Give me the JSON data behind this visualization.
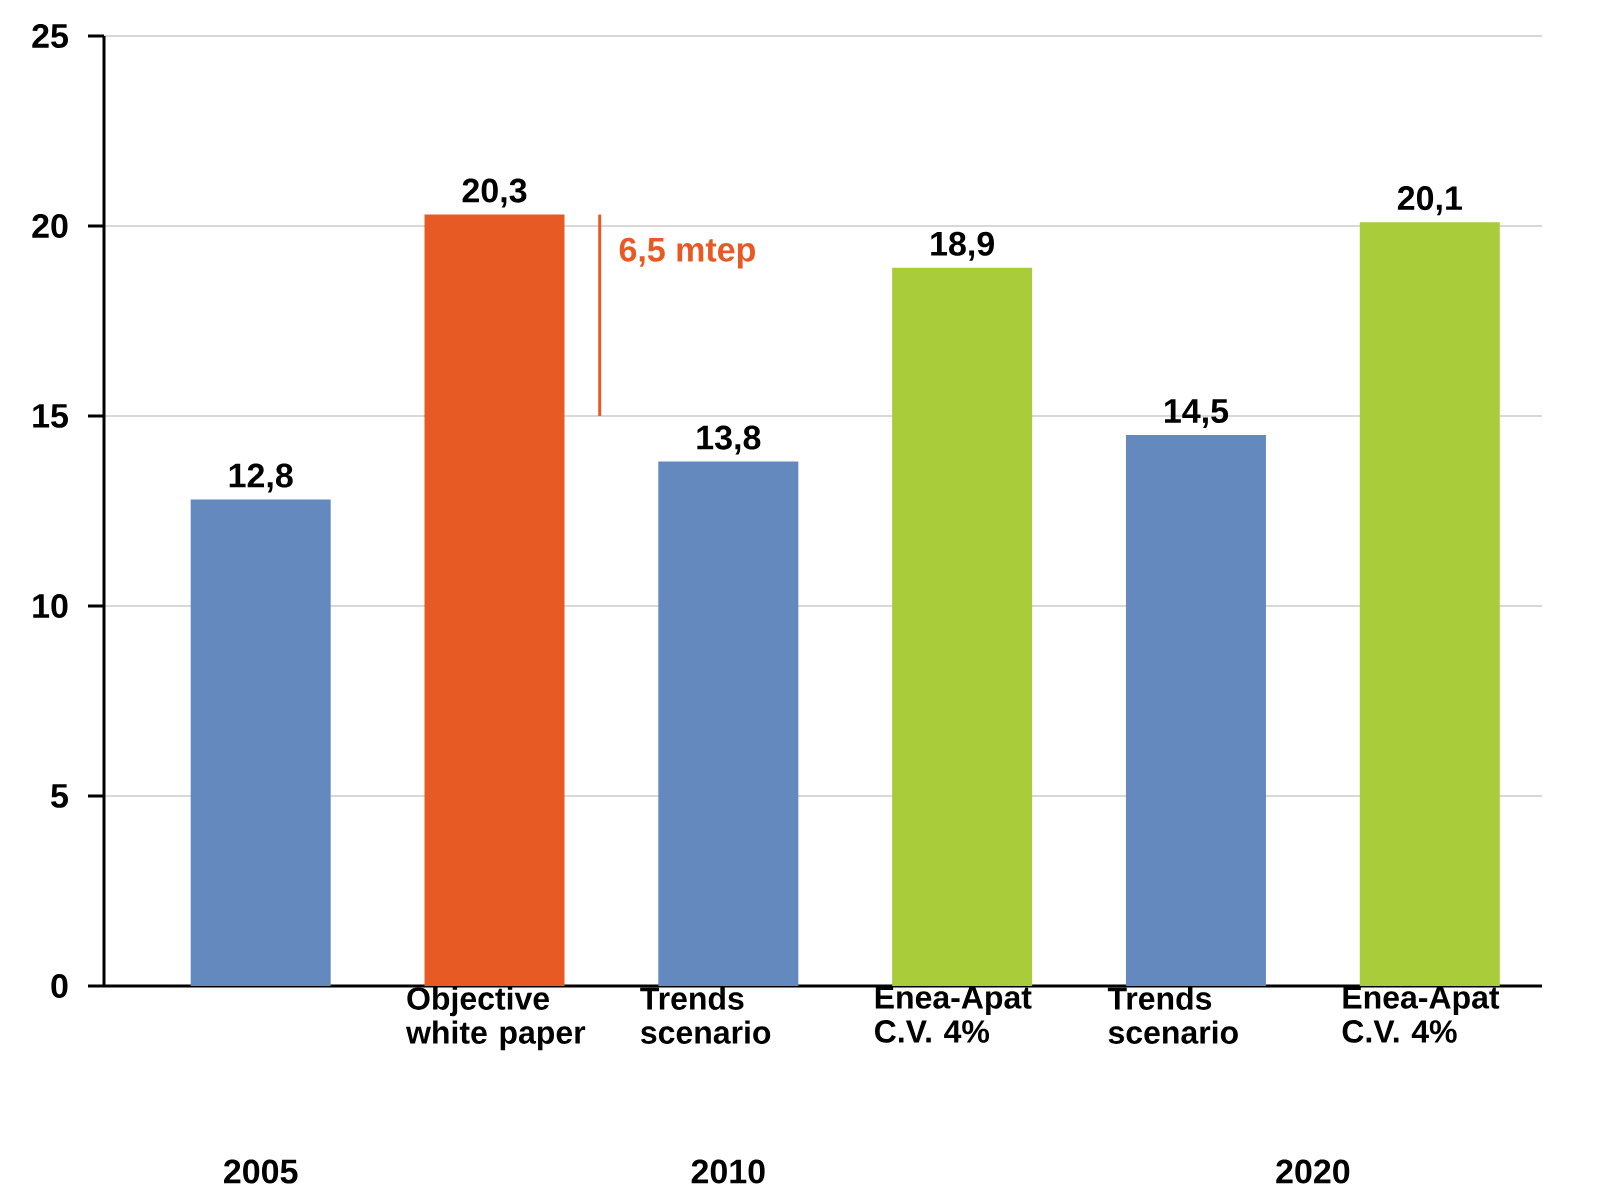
{
  "chart_data": {
    "type": "bar",
    "categories": [
      null,
      "Objective white paper",
      "Trends scenario",
      "Enea-Apat C.V. 4%",
      "Trends scenario",
      "Enea-Apat C.V. 4%"
    ],
    "values": [
      12.8,
      20.3,
      13.8,
      18.9,
      14.5,
      20.1
    ],
    "colors": [
      "#6489bf",
      "#e85a24",
      "#6489bf",
      "#a8cc3a",
      "#6489bf",
      "#a8cc3a"
    ],
    "ylim": [
      0,
      25
    ],
    "yticks": [
      0,
      5,
      10,
      15,
      20,
      25
    ],
    "grid": "y",
    "data_labels": true,
    "value_labels": [
      "12,8",
      "20,3",
      "13,8",
      "18,9",
      "14,5",
      "20,1"
    ],
    "annotations": [
      "2005",
      "2010",
      "2020",
      "6,5 mtep"
    ]
  }
}
